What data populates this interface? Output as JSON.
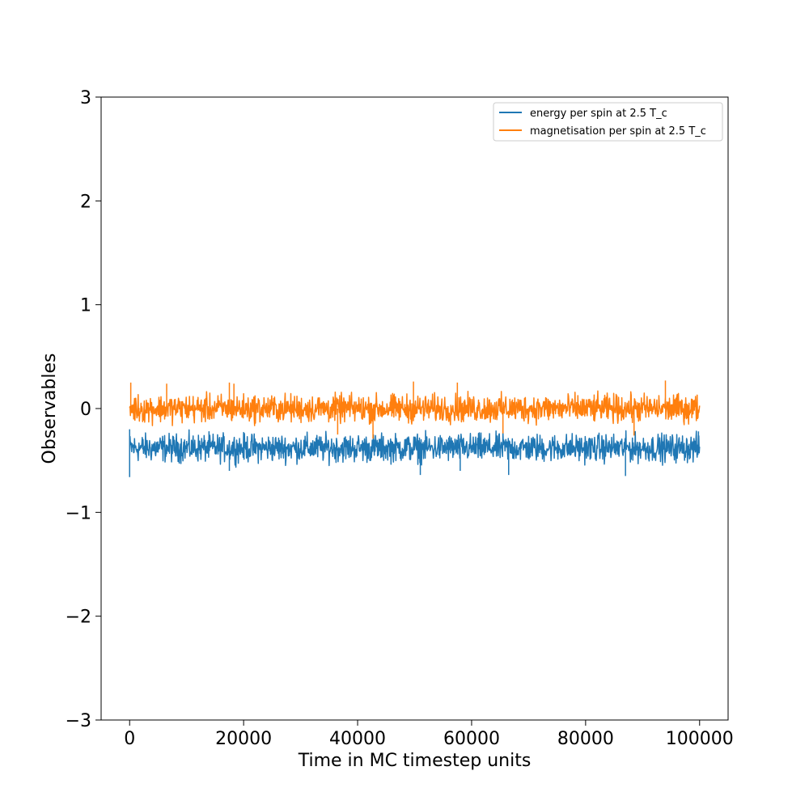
{
  "chart_data": {
    "type": "line",
    "title": "",
    "xlabel": "Time in MC timestep units",
    "ylabel": "Observables",
    "xlim": [
      -5000,
      105000
    ],
    "ylim": [
      -3,
      3
    ],
    "xticks": [
      0,
      20000,
      40000,
      60000,
      80000,
      100000
    ],
    "xtick_labels": [
      "0",
      "20000",
      "40000",
      "60000",
      "80000",
      "100000"
    ],
    "yticks": [
      -3,
      -2,
      -1,
      0,
      1,
      2,
      3
    ],
    "ytick_labels": [
      "−3",
      "−2",
      "−1",
      "0",
      "1",
      "2",
      "3"
    ],
    "grid": false,
    "legend_position": "top-right",
    "x_range": [
      0,
      100000
    ],
    "series": [
      {
        "name": "energy per spin at 2.5 T_c",
        "color": "#1f77b4",
        "mean": -0.38,
        "band": [
          -0.55,
          -0.21
        ],
        "spikes": [
          [
            0,
            -0.66
          ],
          [
            0,
            -0.2
          ],
          [
            17500,
            -0.6
          ],
          [
            43000,
            -0.3
          ],
          [
            51000,
            -0.64
          ],
          [
            58000,
            -0.6
          ],
          [
            66500,
            -0.64
          ],
          [
            78500,
            -0.3
          ],
          [
            87000,
            -0.65
          ],
          [
            99800,
            -0.22
          ]
        ]
      },
      {
        "name": "magnetisation per spin at 2.5 T_c",
        "color": "#ff7f0e",
        "mean": 0.0,
        "band": [
          -0.17,
          0.17
        ],
        "spikes": [
          [
            200,
            0.25
          ],
          [
            6500,
            0.24
          ],
          [
            17500,
            0.25
          ],
          [
            18300,
            0.24
          ],
          [
            36500,
            -0.25
          ],
          [
            42700,
            -0.29
          ],
          [
            49800,
            0.26
          ],
          [
            57500,
            0.25
          ],
          [
            65500,
            -0.24
          ],
          [
            94000,
            0.27
          ],
          [
            88500,
            -0.26
          ]
        ]
      }
    ]
  }
}
